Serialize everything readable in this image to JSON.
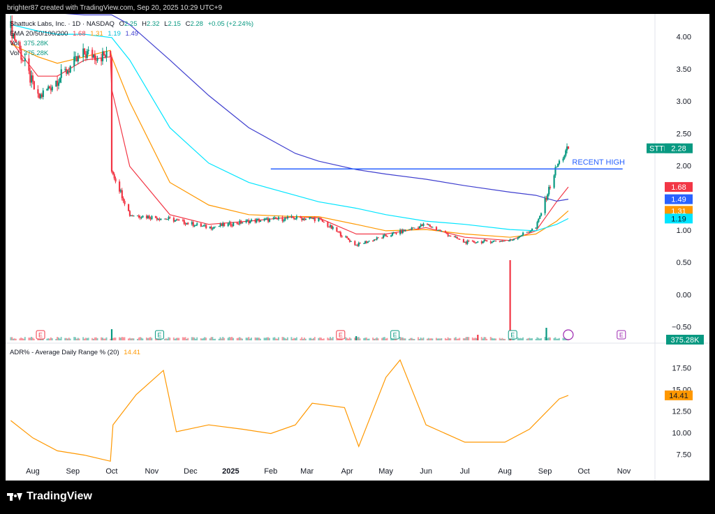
{
  "header": {
    "created_by": "brighter87 created with TradingView.com, Sep 20, 2025 10:29 UTC+9"
  },
  "legend": {
    "symbol_line": "Shattuck Labs, Inc. · 1D · NASDAQ",
    "ohlc": {
      "o_label": "O",
      "o": "2.25",
      "h_label": "H",
      "h": "2.32",
      "l_label": "L",
      "l": "2.15",
      "c_label": "C",
      "c": "2.28",
      "change": "+0.05 (+2.24%)"
    },
    "ema_label": "EMA 20/50/100/200",
    "ema_values": [
      "1.68",
      "1.31",
      "1.19",
      "1.49"
    ],
    "vol1_label": "Vol",
    "vol1_value": "375.28K",
    "vol2_label": "Vol",
    "vol2_value": "375.28K"
  },
  "adr": {
    "label": "ADR% - Average Daily Range % (20)",
    "value": "14.41"
  },
  "annotation": "RECENT HIGH",
  "price_tags": [
    {
      "label": "STTK",
      "value": "2.28",
      "color": "#089981"
    },
    {
      "value": "1.68",
      "color": "#f23645"
    },
    {
      "value": "1.49",
      "color": "#2962ff"
    },
    {
      "value": "1.31",
      "color": "#ff9800"
    },
    {
      "value": "1.19",
      "color": "#00e5ff"
    }
  ],
  "volume_tag": "375.28K",
  "colors": {
    "up": "#089981",
    "down": "#f23645",
    "ema20": "#f23645",
    "ema50": "#ff9800",
    "ema100": "#00e5ff",
    "ema200": "#3f3fcf",
    "adr": "#ff9800",
    "hline": "#2962ff"
  },
  "earnings_markers": [
    {
      "date": "2024-08-07",
      "type": "E",
      "color": "#f23645"
    },
    {
      "date": "2024-11-07",
      "type": "E",
      "color": "#089981"
    },
    {
      "date": "2025-03-27",
      "type": "E",
      "color": "#f23645"
    },
    {
      "date": "2025-05-08",
      "type": "E",
      "color": "#089981"
    },
    {
      "date": "2025-08-07",
      "type": "E",
      "color": "#089981"
    },
    {
      "date": "2025-10-30",
      "type": "E",
      "color": "#9c27b0"
    }
  ],
  "brand": "TradingView",
  "chart_data": [
    {
      "type": "line",
      "title": "STTK daily price (candles) with EMA 20/50/100/200",
      "x_ticks": [
        "Aug",
        "Sep",
        "Oct",
        "Nov",
        "Dec",
        "2025",
        "Feb",
        "Mar",
        "Apr",
        "May",
        "Jun",
        "Jul",
        "Aug",
        "Sep",
        "Oct",
        "Nov"
      ],
      "y_ticks": [
        "4.00",
        "3.50",
        "3.00",
        "2.50",
        "2.00",
        "1.50",
        "1.00",
        "0.50",
        "0.00",
        "−0.50"
      ],
      "ylim": [
        -0.7,
        4.3
      ],
      "x": [
        "2024-07-15",
        "2024-08-05",
        "2024-08-20",
        "2024-09-10",
        "2024-09-30",
        "2024-10-01",
        "2024-10-15",
        "2024-11-15",
        "2024-12-15",
        "2025-01-15",
        "2025-02-20",
        "2025-03-10",
        "2025-04-08",
        "2025-05-01",
        "2025-06-01",
        "2025-07-01",
        "2025-08-05",
        "2025-08-25",
        "2025-09-10",
        "2025-09-19"
      ],
      "series": [
        {
          "name": "Close",
          "values": [
            4.15,
            3.05,
            3.35,
            3.75,
            3.7,
            1.95,
            1.25,
            1.18,
            1.05,
            1.15,
            1.2,
            1.18,
            0.78,
            0.92,
            1.1,
            0.82,
            0.85,
            1.05,
            2.0,
            2.28
          ]
        },
        {
          "name": "EMA 20",
          "values": [
            3.95,
            3.4,
            3.4,
            3.65,
            3.7,
            3.2,
            2.0,
            1.25,
            1.1,
            1.15,
            1.22,
            1.2,
            0.95,
            0.95,
            1.05,
            0.9,
            0.85,
            1.0,
            1.45,
            1.68
          ]
        },
        {
          "name": "EMA 50",
          "values": [
            3.9,
            3.7,
            3.6,
            3.7,
            3.8,
            3.7,
            3.0,
            1.75,
            1.4,
            1.25,
            1.22,
            1.22,
            1.1,
            1.0,
            1.02,
            0.95,
            0.9,
            0.95,
            1.15,
            1.31
          ]
        },
        {
          "name": "EMA 100",
          "values": [
            4.2,
            4.1,
            4.05,
            4.05,
            4.0,
            4.0,
            3.65,
            2.6,
            2.05,
            1.75,
            1.55,
            1.45,
            1.35,
            1.25,
            1.15,
            1.1,
            1.02,
            1.0,
            1.1,
            1.19
          ]
        },
        {
          "name": "EMA 200",
          "values": [
            4.45,
            4.4,
            4.38,
            4.35,
            4.35,
            4.35,
            4.2,
            3.65,
            3.1,
            2.6,
            2.2,
            2.08,
            1.95,
            1.88,
            1.8,
            1.7,
            1.6,
            1.55,
            1.46,
            1.49
          ]
        }
      ],
      "horizontal_line": {
        "value": 1.96,
        "label": "RECENT HIGH",
        "from": "2025-02-01",
        "to": "2025-10-31"
      }
    },
    {
      "type": "line",
      "title": "ADR% - Average Daily Range % (20)",
      "y_ticks": [
        "17.50",
        "15.00",
        "12.50",
        "10.00",
        "7.50"
      ],
      "ylim": [
        6.5,
        19
      ],
      "x": [
        "2024-07-15",
        "2024-08-01",
        "2024-08-20",
        "2024-09-10",
        "2024-09-30",
        "2024-10-02",
        "2024-10-20",
        "2024-11-10",
        "2024-11-20",
        "2024-12-15",
        "2025-01-10",
        "2025-02-01",
        "2025-02-20",
        "2025-03-05",
        "2025-03-30",
        "2025-04-10",
        "2025-05-01",
        "2025-05-12",
        "2025-06-01",
        "2025-07-01",
        "2025-08-01",
        "2025-08-20",
        "2025-09-12",
        "2025-09-19"
      ],
      "series": [
        {
          "name": "ADR%",
          "values": [
            11.5,
            9.5,
            8.0,
            7.5,
            6.8,
            11.0,
            14.5,
            17.3,
            10.2,
            11.0,
            10.5,
            10.0,
            11.0,
            13.5,
            13.0,
            8.5,
            16.5,
            18.5,
            11.0,
            9.0,
            9.0,
            10.5,
            14.0,
            14.41
          ]
        }
      ]
    }
  ]
}
